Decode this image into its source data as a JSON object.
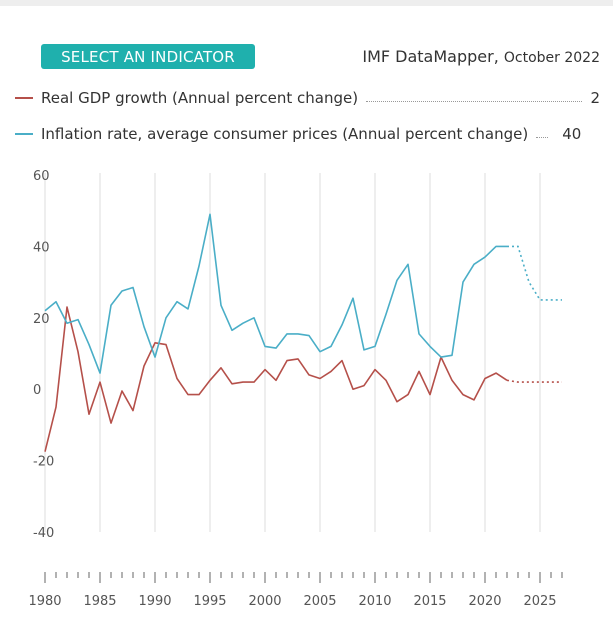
{
  "header": {
    "select_label": "SELECT AN INDICATOR",
    "source_name": "IMF DataMapper,",
    "source_edition": "October 2022"
  },
  "chart_data": {
    "type": "line",
    "title": "",
    "xlabel": "",
    "ylabel": "",
    "xlim": [
      1980,
      2027
    ],
    "ylim": [
      -40,
      60
    ],
    "y_ticks": [
      60,
      40,
      20,
      0,
      -20,
      -40
    ],
    "x_ticks": [
      1980,
      1985,
      1990,
      1995,
      2000,
      2005,
      2010,
      2015,
      2020,
      2025
    ],
    "grid": "vertical lines every 5 years",
    "forecast_start": 2022,
    "series": [
      {
        "name": "Real GDP growth (Annual percent change)",
        "legend_value": "2",
        "color": "#b5504a",
        "x": [
          1980,
          1981,
          1982,
          1983,
          1984,
          1985,
          1986,
          1987,
          1988,
          1989,
          1990,
          1991,
          1992,
          1993,
          1994,
          1995,
          1996,
          1997,
          1998,
          1999,
          2000,
          2001,
          2002,
          2003,
          2004,
          2005,
          2006,
          2007,
          2008,
          2009,
          2010,
          2011,
          2012,
          2013,
          2014,
          2015,
          2016,
          2017,
          2018,
          2019,
          2020,
          2021,
          2022,
          2023,
          2024,
          2025,
          2026,
          2027
        ],
        "values": [
          -17.5,
          -5,
          23,
          10.5,
          -7,
          2,
          -9.5,
          -0.5,
          -6,
          6.5,
          13,
          12.5,
          3,
          -1.5,
          -1.5,
          2.5,
          6,
          1.5,
          2,
          2,
          5.5,
          2.5,
          8,
          8.5,
          4,
          3,
          5,
          8,
          0,
          1,
          5.5,
          2.5,
          -3.5,
          -1.5,
          5,
          -1.5,
          9,
          2.5,
          -1.5,
          -3,
          3,
          4.5,
          2.5,
          2,
          2,
          2,
          2,
          2
        ]
      },
      {
        "name": "Inflation rate, average consumer prices (Annual percent change)",
        "legend_value": "40",
        "color": "#4aaec7",
        "x": [
          1980,
          1981,
          1982,
          1983,
          1984,
          1985,
          1986,
          1987,
          1988,
          1989,
          1990,
          1991,
          1992,
          1993,
          1994,
          1995,
          1996,
          1997,
          1998,
          1999,
          2000,
          2001,
          2002,
          2003,
          2004,
          2005,
          2006,
          2007,
          2008,
          2009,
          2010,
          2011,
          2012,
          2013,
          2014,
          2015,
          2016,
          2017,
          2018,
          2019,
          2020,
          2021,
          2022,
          2023,
          2024,
          2025,
          2026,
          2027
        ],
        "values": [
          22,
          24.5,
          18.5,
          19.5,
          12.5,
          4.5,
          23.5,
          27.5,
          28.5,
          17.5,
          9,
          20,
          24.5,
          22.5,
          34.5,
          49,
          23.5,
          16.5,
          18.5,
          20,
          12,
          11.5,
          15.5,
          15.5,
          15,
          10.5,
          12,
          18,
          25.5,
          11,
          12,
          21,
          30.5,
          35,
          15.5,
          12,
          9,
          9.5,
          30,
          35,
          37,
          40,
          40,
          40,
          30,
          25,
          25,
          25
        ]
      }
    ]
  }
}
